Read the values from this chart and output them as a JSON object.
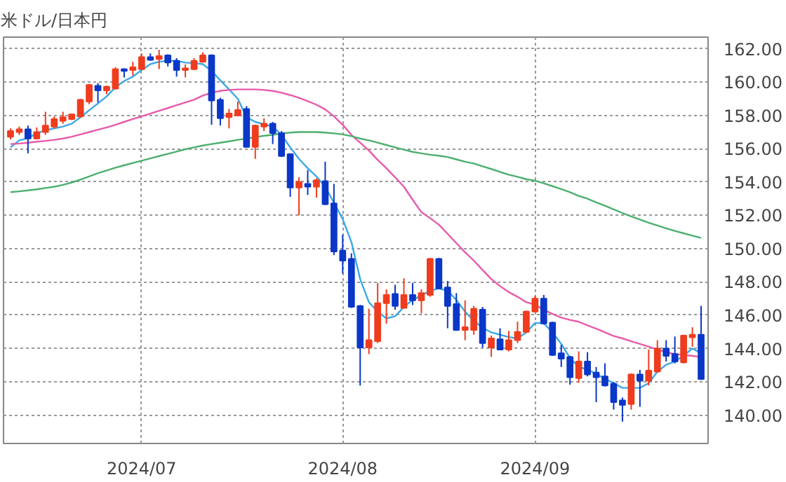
{
  "chart_data": {
    "type": "candlestick",
    "title": "米ドル/日本円",
    "categories": [
      null,
      null,
      null,
      null,
      null,
      null,
      null,
      null,
      null,
      null,
      null,
      null,
      null,
      null,
      null,
      "2024/07",
      null,
      null,
      null,
      null,
      null,
      null,
      null,
      null,
      null,
      null,
      null,
      null,
      null,
      null,
      null,
      null,
      null,
      null,
      null,
      null,
      null,
      null,
      "2024/08",
      null,
      null,
      null,
      null,
      null,
      null,
      null,
      null,
      null,
      null,
      null,
      null,
      null,
      null,
      null,
      null,
      null,
      null,
      null,
      null,
      null,
      "2024/09",
      null,
      null,
      null,
      null,
      null,
      null,
      null,
      null,
      null,
      null,
      null,
      null,
      null,
      null,
      null,
      null,
      null,
      null,
      null
    ],
    "ohlc": [
      [
        156.72,
        157.22,
        156.56,
        157.06
      ],
      [
        157.0,
        157.33,
        156.83,
        157.17
      ],
      [
        157.17,
        157.39,
        155.72,
        156.61
      ],
      [
        156.61,
        157.28,
        156.56,
        157.0
      ],
      [
        157.0,
        158.22,
        156.83,
        157.39
      ],
      [
        157.33,
        157.94,
        157.22,
        157.78
      ],
      [
        157.67,
        158.22,
        157.5,
        157.89
      ],
      [
        157.78,
        158.11,
        157.72,
        158.06
      ],
      [
        157.94,
        159.0,
        157.89,
        158.94
      ],
      [
        158.83,
        159.89,
        158.67,
        159.83
      ],
      [
        159.78,
        159.94,
        158.78,
        159.5
      ],
      [
        159.5,
        159.78,
        159.28,
        159.72
      ],
      [
        159.61,
        160.89,
        159.56,
        160.78
      ],
      [
        160.78,
        160.83,
        160.28,
        160.67
      ],
      [
        160.72,
        161.22,
        160.39,
        160.89
      ],
      [
        160.78,
        161.72,
        160.72,
        161.5
      ],
      [
        161.5,
        161.72,
        161.28,
        161.33
      ],
      [
        161.39,
        161.94,
        160.78,
        161.56
      ],
      [
        161.61,
        161.67,
        160.94,
        161.17
      ],
      [
        161.28,
        161.44,
        160.33,
        160.72
      ],
      [
        160.72,
        161.06,
        160.28,
        160.83
      ],
      [
        160.78,
        161.44,
        160.72,
        161.28
      ],
      [
        161.22,
        161.78,
        161.17,
        161.61
      ],
      [
        161.61,
        161.67,
        157.44,
        158.89
      ],
      [
        158.94,
        159.06,
        157.39,
        157.83
      ],
      [
        157.89,
        158.39,
        157.22,
        158.11
      ],
      [
        158.0,
        158.83,
        157.94,
        158.33
      ],
      [
        158.39,
        158.56,
        156.06,
        156.11
      ],
      [
        156.11,
        157.44,
        155.39,
        157.39
      ],
      [
        157.33,
        157.83,
        157.06,
        157.5
      ],
      [
        157.5,
        157.61,
        156.28,
        156.94
      ],
      [
        156.94,
        157.06,
        155.5,
        155.56
      ],
      [
        155.67,
        155.72,
        153.11,
        153.67
      ],
      [
        153.67,
        154.28,
        152.0,
        154.0
      ],
      [
        153.89,
        154.72,
        153.22,
        153.72
      ],
      [
        153.72,
        154.22,
        153.06,
        154.11
      ],
      [
        154.06,
        155.22,
        152.61,
        152.67
      ],
      [
        152.72,
        153.89,
        149.61,
        149.83
      ],
      [
        149.89,
        150.83,
        148.5,
        149.28
      ],
      [
        149.39,
        149.72,
        146.44,
        146.5
      ],
      [
        146.56,
        146.61,
        141.78,
        144.06
      ],
      [
        144.06,
        146.39,
        143.67,
        144.5
      ],
      [
        144.44,
        147.94,
        144.33,
        146.72
      ],
      [
        146.72,
        147.56,
        145.5,
        147.22
      ],
      [
        147.28,
        147.83,
        146.33,
        146.56
      ],
      [
        146.44,
        148.22,
        146.39,
        147.22
      ],
      [
        147.22,
        147.94,
        146.61,
        146.89
      ],
      [
        146.89,
        147.56,
        146.11,
        147.33
      ],
      [
        147.22,
        149.44,
        147.11,
        149.39
      ],
      [
        149.39,
        149.44,
        147.56,
        147.61
      ],
      [
        147.67,
        148.06,
        145.22,
        146.56
      ],
      [
        146.67,
        147.33,
        145.06,
        145.11
      ],
      [
        145.11,
        146.89,
        144.5,
        145.28
      ],
      [
        145.11,
        146.56,
        144.83,
        146.39
      ],
      [
        146.33,
        146.5,
        144.06,
        144.33
      ],
      [
        144.06,
        144.78,
        143.5,
        144.61
      ],
      [
        144.56,
        145.22,
        143.89,
        143.94
      ],
      [
        143.94,
        145.06,
        143.83,
        144.5
      ],
      [
        144.5,
        145.61,
        144.33,
        145.0
      ],
      [
        145.0,
        146.28,
        144.94,
        146.22
      ],
      [
        146.22,
        147.17,
        146.17,
        147.0
      ],
      [
        147.0,
        147.22,
        145.44,
        145.5
      ],
      [
        145.56,
        145.61,
        143.56,
        143.61
      ],
      [
        143.72,
        144.22,
        142.89,
        143.39
      ],
      [
        143.5,
        143.56,
        141.83,
        142.28
      ],
      [
        142.22,
        143.83,
        141.94,
        143.22
      ],
      [
        143.22,
        143.78,
        142.33,
        142.44
      ],
      [
        142.56,
        142.89,
        140.78,
        142.28
      ],
      [
        142.33,
        143.11,
        141.72,
        141.78
      ],
      [
        141.89,
        142.0,
        140.33,
        140.78
      ],
      [
        140.89,
        141.06,
        139.61,
        140.61
      ],
      [
        140.67,
        142.5,
        140.33,
        142.44
      ],
      [
        142.44,
        142.72,
        140.5,
        142.06
      ],
      [
        142.06,
        143.94,
        141.78,
        142.67
      ],
      [
        142.61,
        144.5,
        142.56,
        144.0
      ],
      [
        144.0,
        144.5,
        143.22,
        143.56
      ],
      [
        143.67,
        144.72,
        143.11,
        143.22
      ],
      [
        143.17,
        144.83,
        143.11,
        144.78
      ],
      [
        144.67,
        145.28,
        144.11,
        144.83
      ],
      [
        144.83,
        146.56,
        142.11,
        142.17
      ]
    ],
    "colors": [
      "#f03c1e",
      "#f03c1e",
      "#0a37c8",
      "#f03c1e",
      "#f03c1e",
      "#f03c1e",
      "#f03c1e",
      "#f03c1e",
      "#f03c1e",
      "#f03c1e",
      "#0a37c8",
      "#f03c1e",
      "#f03c1e",
      "#0a37c8",
      "#f03c1e",
      "#f03c1e",
      "#0a37c8",
      "#f03c1e",
      "#0a37c8",
      "#0a37c8",
      "#f03c1e",
      "#f03c1e",
      "#f03c1e",
      "#0a37c8",
      "#0a37c8",
      "#f03c1e",
      "#f03c1e",
      "#0a37c8",
      "#f03c1e",
      "#f03c1e",
      "#0a37c8",
      "#0a37c8",
      "#0a37c8",
      "#f03c1e",
      "#0a37c8",
      "#f03c1e",
      "#0a37c8",
      "#0a37c8",
      "#0a37c8",
      "#0a37c8",
      "#0a37c8",
      "#f03c1e",
      "#f03c1e",
      "#f03c1e",
      "#0a37c8",
      "#f03c1e",
      "#0a37c8",
      "#f03c1e",
      "#f03c1e",
      "#0a37c8",
      "#0a37c8",
      "#0a37c8",
      "#f03c1e",
      "#f03c1e",
      "#0a37c8",
      "#f03c1e",
      "#0a37c8",
      "#f03c1e",
      "#f03c1e",
      "#f03c1e",
      "#f03c1e",
      "#0a37c8",
      "#0a37c8",
      "#0a37c8",
      "#0a37c8",
      "#f03c1e",
      "#0a37c8",
      "#0a37c8",
      "#0a37c8",
      "#0a37c8",
      "#0a37c8",
      "#f03c1e",
      "#0a37c8",
      "#f03c1e",
      "#f03c1e",
      "#0a37c8",
      "#0a37c8",
      "#f03c1e",
      "#f03c1e",
      "#0a37c8"
    ],
    "series": [
      {
        "type": "line",
        "color": "#3aa8e8",
        "values": [
          156.08,
          156.5,
          156.64,
          156.92,
          157.11,
          157.22,
          157.33,
          157.5,
          157.89,
          158.31,
          158.72,
          159.14,
          159.69,
          160.06,
          160.33,
          160.72,
          161.08,
          161.22,
          161.28,
          161.28,
          161.17,
          161.14,
          161.08,
          160.67,
          160.11,
          159.56,
          159.0,
          157.89,
          157.61,
          157.47,
          157.33,
          156.83,
          156.08,
          155.39,
          154.83,
          154.33,
          153.72,
          152.75,
          151.78,
          150.39,
          148.17,
          146.78,
          146.22,
          145.81,
          145.94,
          146.5,
          146.92,
          147.19,
          147.47,
          147.61,
          147.47,
          146.92,
          146.22,
          145.67,
          145.25,
          144.97,
          144.83,
          144.69,
          144.61,
          144.97,
          145.53,
          145.53,
          144.97,
          144.28,
          143.44,
          142.89,
          142.75,
          142.47,
          142.19,
          141.92,
          141.64,
          141.64,
          141.64,
          141.92,
          142.61,
          143.03,
          143.22,
          143.58,
          144.0,
          143.72
        ]
      },
      {
        "type": "line",
        "color": "#e85aaa",
        "values": [
          156.28,
          156.31,
          156.36,
          156.42,
          156.47,
          156.53,
          156.61,
          156.72,
          156.86,
          157.0,
          157.14,
          157.28,
          157.44,
          157.61,
          157.78,
          157.94,
          158.11,
          158.28,
          158.44,
          158.61,
          158.78,
          158.94,
          159.19,
          159.36,
          159.47,
          159.53,
          159.56,
          159.56,
          159.56,
          159.53,
          159.47,
          159.36,
          159.22,
          159.06,
          158.86,
          158.64,
          158.36,
          157.94,
          157.44,
          156.83,
          156.36,
          155.89,
          155.33,
          154.83,
          154.28,
          153.72,
          152.94,
          152.19,
          151.83,
          151.44,
          150.89,
          150.33,
          149.78,
          149.28,
          148.72,
          148.17,
          147.75,
          147.39,
          147.11,
          146.78,
          146.64,
          146.33,
          146.08,
          145.86,
          145.72,
          145.61,
          145.39,
          145.19,
          144.97,
          144.75,
          144.61,
          144.44,
          144.28,
          144.11,
          143.94,
          143.78,
          143.67,
          143.61,
          143.56,
          143.5
        ]
      },
      {
        "type": "line",
        "color": "#4caf6e",
        "values": [
          153.39,
          153.44,
          153.5,
          153.56,
          153.64,
          153.72,
          153.83,
          153.97,
          154.14,
          154.33,
          154.53,
          154.69,
          154.86,
          155.0,
          155.14,
          155.28,
          155.42,
          155.56,
          155.69,
          155.83,
          155.97,
          156.08,
          156.19,
          156.28,
          156.36,
          156.44,
          156.53,
          156.61,
          156.69,
          156.78,
          156.83,
          156.92,
          156.97,
          157.0,
          157.0,
          157.0,
          156.97,
          156.92,
          156.86,
          156.75,
          156.61,
          156.5,
          156.36,
          156.22,
          156.08,
          155.94,
          155.81,
          155.72,
          155.64,
          155.58,
          155.5,
          155.36,
          155.22,
          155.11,
          154.94,
          154.78,
          154.61,
          154.44,
          154.31,
          154.17,
          154.08,
          153.92,
          153.75,
          153.58,
          153.39,
          153.17,
          153.0,
          152.78,
          152.58,
          152.36,
          152.14,
          151.94,
          151.75,
          151.56,
          151.39,
          151.22,
          151.06,
          150.92,
          150.78,
          150.64
        ]
      }
    ],
    "ylim": [
      138.3,
      162.7
    ],
    "yticks": [
      {
        "value": 140,
        "label": "140.00"
      },
      {
        "value": 142,
        "label": "142.00"
      },
      {
        "value": 144,
        "label": "144.00"
      },
      {
        "value": 146,
        "label": "146.00"
      },
      {
        "value": 148,
        "label": "148.00"
      },
      {
        "value": 150,
        "label": "150.00"
      },
      {
        "value": 152,
        "label": "152.00"
      },
      {
        "value": 154,
        "label": "154.00"
      },
      {
        "value": 156,
        "label": "156.00"
      },
      {
        "value": 158,
        "label": "158.00"
      },
      {
        "value": 160,
        "label": "160.00"
      },
      {
        "value": 162,
        "label": "162.00"
      }
    ],
    "grid": true
  }
}
